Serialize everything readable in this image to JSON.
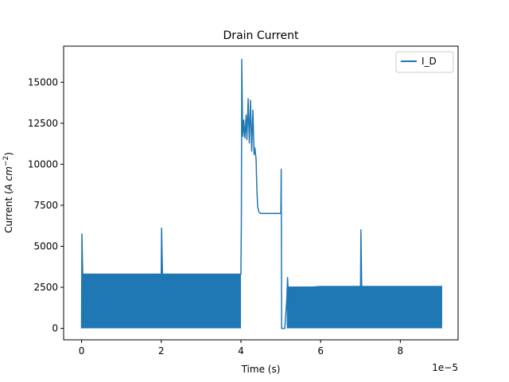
{
  "chart_data": {
    "type": "line",
    "title": "Drain Current",
    "xlabel": "Time (s)",
    "ylabel_prefix": "Current (",
    "ylabel_unit_A": "A cm",
    "ylabel_exp": "−2",
    "ylabel_suffix": ")",
    "x_offset_text": "1e−5",
    "xlim": [
      -0.45,
      9.45
    ],
    "ylim": [
      -700,
      17200
    ],
    "x_ticks": [
      0,
      2,
      4,
      6,
      8
    ],
    "x_tick_labels": [
      "0",
      "2",
      "4",
      "6",
      "8"
    ],
    "y_ticks": [
      0,
      2500,
      5000,
      7500,
      10000,
      12500,
      15000
    ],
    "y_tick_labels": [
      "0",
      "2500",
      "5000",
      "7500",
      "10000",
      "12500",
      "15000"
    ],
    "grid": false,
    "legend_position": "upper right",
    "series": [
      {
        "name": "I_D",
        "color": "#1f77b4",
        "bands": [
          {
            "x": [
              0.0,
              4.0
            ],
            "y": [
              0,
              3300
            ]
          },
          {
            "x": [
              5.15,
              9.05
            ],
            "y": [
              0,
              2550
            ]
          }
        ],
        "x": [
          0.0,
          0.01,
          0.03,
          0.06,
          2.0,
          2.01,
          2.03,
          2.06,
          4.0,
          4.01,
          4.02,
          4.04,
          4.05,
          4.07,
          4.1,
          4.13,
          4.15,
          4.18,
          4.21,
          4.24,
          4.27,
          4.3,
          4.33,
          4.35,
          4.38,
          4.4,
          4.42,
          4.45,
          4.5,
          4.6,
          4.8,
          5.0,
          5.01,
          5.02,
          5.05,
          5.1,
          5.15,
          5.17,
          5.2,
          5.25,
          5.4,
          6.0,
          7.0,
          7.01,
          7.03,
          7.06,
          8.0,
          9.05
        ],
        "y": [
          0,
          5750,
          3300,
          3300,
          3300,
          6100,
          3300,
          3300,
          3300,
          6500,
          16400,
          12200,
          11700,
          12700,
          11600,
          13000,
          11500,
          14000,
          11300,
          13900,
          10800,
          13300,
          10600,
          11000,
          10300,
          8500,
          7400,
          7100,
          7000,
          7000,
          7000,
          7000,
          9700,
          0,
          0,
          0,
          1800,
          3100,
          1500,
          2000,
          2450,
          2550,
          2550,
          6000,
          2550,
          2550,
          2550,
          2550
        ]
      }
    ]
  }
}
